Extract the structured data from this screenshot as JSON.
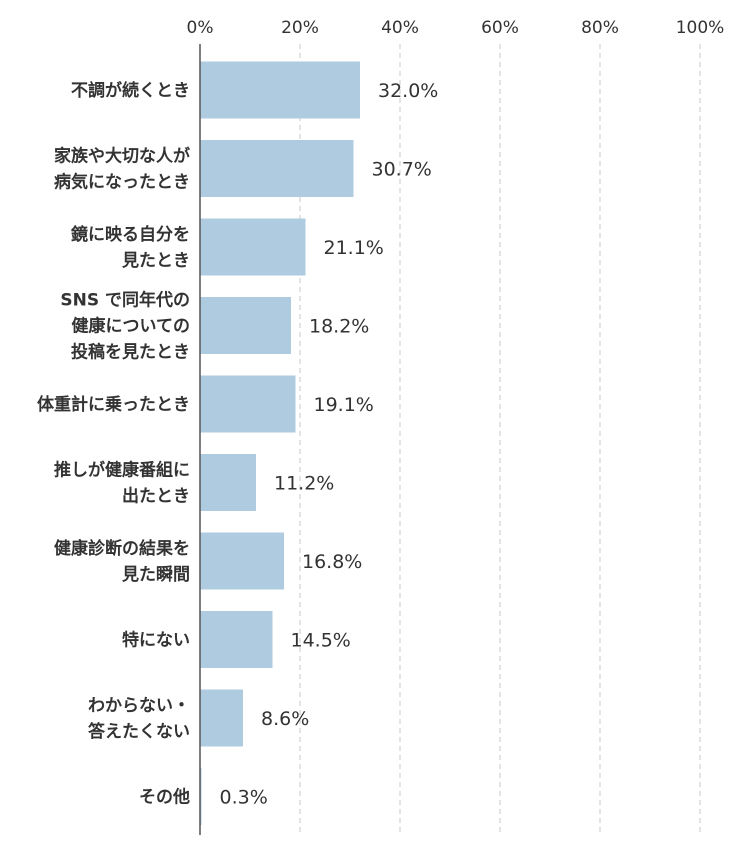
{
  "colors": {
    "bar": "#aecbe0",
    "gridline": "#c8c8c8",
    "axis": "#555555",
    "text": "#333333"
  },
  "chart_data": {
    "type": "bar",
    "orientation": "horizontal",
    "title": "",
    "xlabel": "",
    "ylabel": "",
    "xlim": [
      0,
      100
    ],
    "x_ticks": [
      "0%",
      "20%",
      "40%",
      "60%",
      "80%",
      "100%"
    ],
    "tick_values": [
      0,
      20,
      40,
      60,
      80,
      100
    ],
    "grid": true,
    "categories": [
      [
        "不調が続くとき"
      ],
      [
        "家族や大切な人が",
        "病気になったとき"
      ],
      [
        "鏡に映る自分を",
        "見たとき"
      ],
      [
        "SNS で同年代の",
        "健康についての",
        "投稿を見たとき"
      ],
      [
        "体重計に乗ったとき"
      ],
      [
        "推しが健康番組に",
        "出たとき"
      ],
      [
        "健康診断の結果を",
        "見た瞬間"
      ],
      [
        "特にない"
      ],
      [
        "わからない・",
        "答えたくない"
      ],
      [
        "その他"
      ]
    ],
    "values": [
      32.0,
      30.7,
      21.1,
      18.2,
      19.1,
      11.2,
      16.8,
      14.5,
      8.6,
      0.3
    ],
    "value_labels": [
      "32.0%",
      "30.7%",
      "21.1%",
      "18.2%",
      "19.1%",
      "11.2%",
      "16.8%",
      "14.5%",
      "8.6%",
      "0.3%"
    ]
  }
}
